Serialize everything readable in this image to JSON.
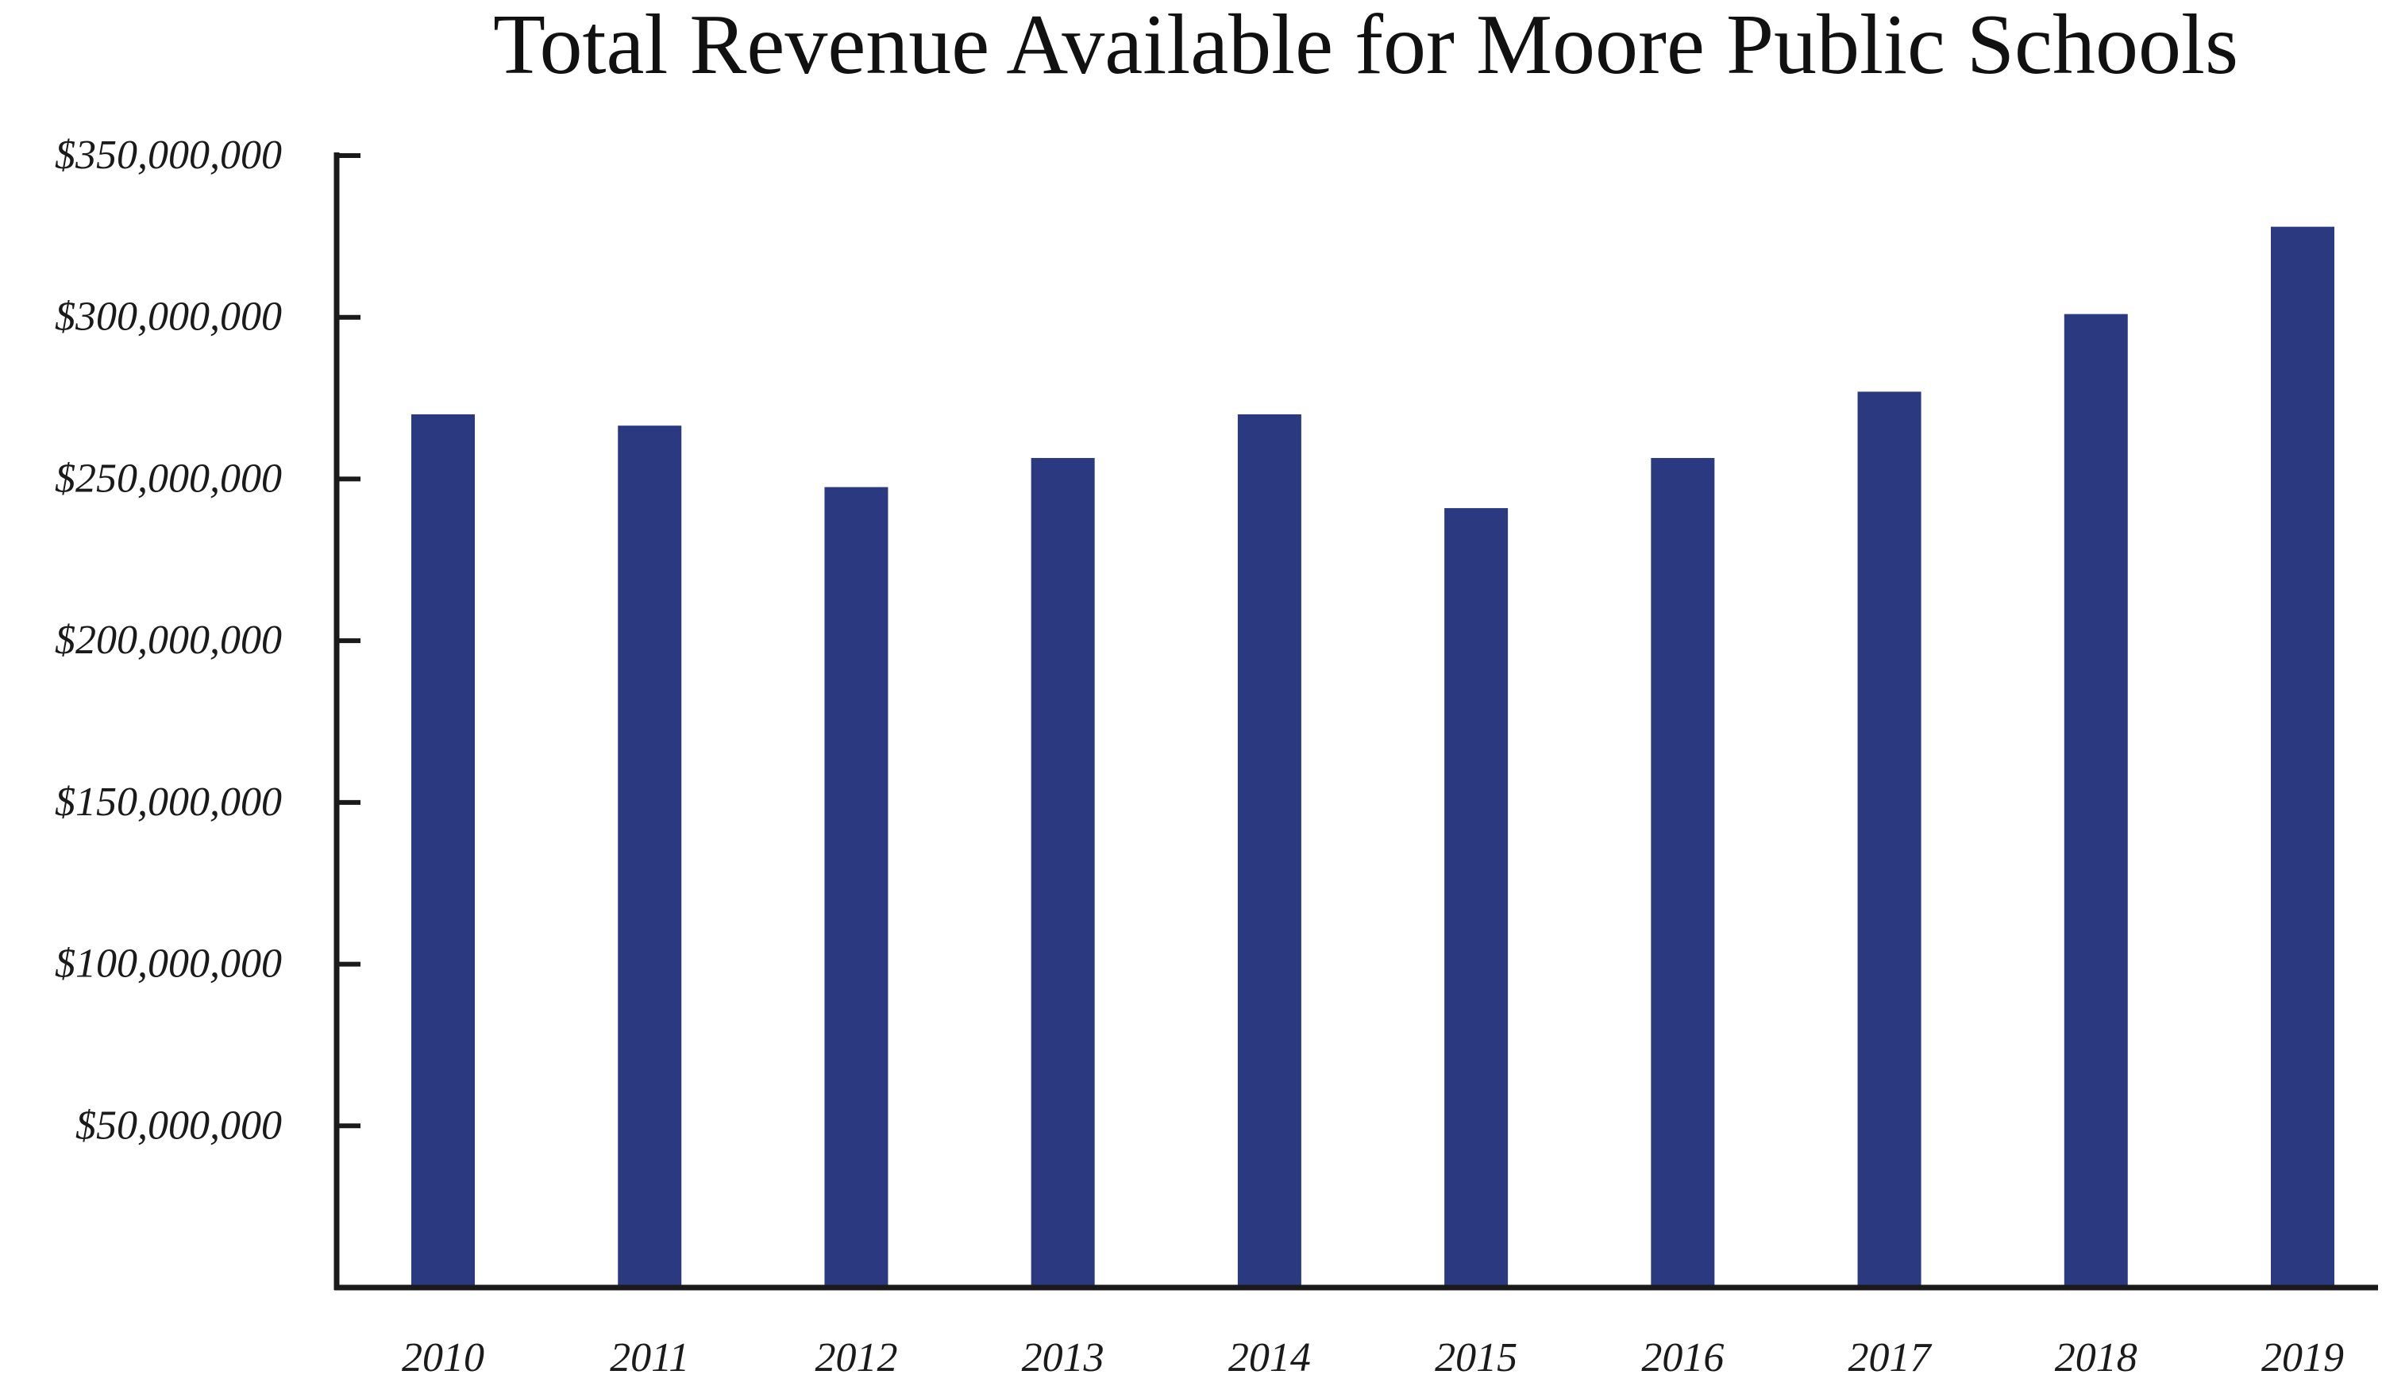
{
  "chart_data": {
    "type": "bar",
    "title": "Total Revenue Available for Moore Public Schools",
    "xlabel": "",
    "ylabel": "",
    "categories": [
      "2010",
      "2011",
      "2012",
      "2013",
      "2014",
      "2015",
      "2016",
      "2017",
      "2018",
      "2019"
    ],
    "values": [
      270000000,
      266500000,
      247500000,
      256500000,
      270000000,
      241000000,
      256500000,
      277000000,
      301000000,
      328000000
    ],
    "ylim": [
      0,
      350000000
    ],
    "yticks": [
      50000000,
      100000000,
      150000000,
      200000000,
      250000000,
      300000000,
      350000000
    ],
    "ytick_labels": [
      "$50,000,000",
      "$100,000,000",
      "$150,000,000",
      "$200,000,000",
      "$250,000,000",
      "$300,000,000",
      "$350,000,000"
    ],
    "grid": false,
    "legend": "none",
    "bar_color": "#2b3a80"
  }
}
